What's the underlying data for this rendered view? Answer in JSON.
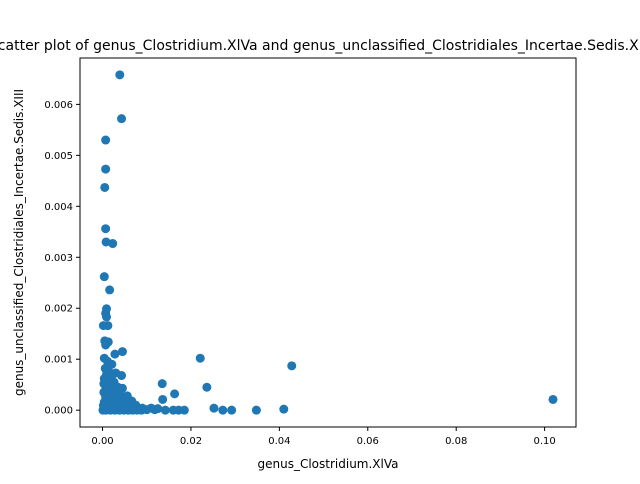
{
  "chart_data": {
    "type": "scatter",
    "title": "Scatter plot of genus_Clostridium.XlVa and genus_unclassified_Clostridiales_Incertae.Sedis.XIII",
    "xlabel": "genus_Clostridium.XlVa",
    "ylabel": "genus_unclassified_Clostridiales_Incertae.Sedis.XIII",
    "xlim": [
      -0.0051,
      0.1071
    ],
    "ylim": [
      -0.00033,
      0.00691
    ],
    "xticks": [
      0.0,
      0.02,
      0.04,
      0.06,
      0.08,
      0.1
    ],
    "xtick_labels": [
      "0.00",
      "0.02",
      "0.04",
      "0.06",
      "0.08",
      "0.10"
    ],
    "yticks": [
      0.0,
      0.001,
      0.002,
      0.003,
      0.004,
      0.005,
      0.006
    ],
    "ytick_labels": [
      "0.000",
      "0.001",
      "0.002",
      "0.003",
      "0.004",
      "0.005",
      "0.006"
    ],
    "grid": false,
    "marker_color": "#1f77b4",
    "points": [
      [
        0.0039,
        0.00658
      ],
      [
        0.0043,
        0.00572
      ],
      [
        0.0007,
        0.0053
      ],
      [
        0.0007,
        0.00473
      ],
      [
        0.0005,
        0.00437
      ],
      [
        0.0007,
        0.00356
      ],
      [
        0.0008,
        0.0033
      ],
      [
        0.0023,
        0.00327
      ],
      [
        0.0004,
        0.00262
      ],
      [
        0.0016,
        0.00236
      ],
      [
        0.0009,
        0.00199
      ],
      [
        0.0007,
        0.0019
      ],
      [
        0.0009,
        0.00183
      ],
      [
        0.0002,
        0.00166
      ],
      [
        0.0012,
        0.00166
      ],
      [
        0.0005,
        0.00136
      ],
      [
        0.0013,
        0.00134
      ],
      [
        0.0007,
        0.00128
      ],
      [
        0.0028,
        0.0011
      ],
      [
        0.0045,
        0.00115
      ],
      [
        0.0221,
        0.00102
      ],
      [
        0.0428,
        0.00087
      ],
      [
        0.0135,
        0.00052
      ],
      [
        0.0236,
        0.00045
      ],
      [
        0.0163,
        0.00032
      ],
      [
        0.1019,
        0.00021
      ],
      [
        0.0136,
        0.00021
      ],
      [
        0.0043,
        0.00068
      ],
      [
        0.0045,
        0.00043
      ],
      [
        0.0004,
        0.00102
      ],
      [
        0.0011,
        0.00096
      ],
      [
        0.0021,
        0.0009
      ],
      [
        0.0006,
        0.00082
      ],
      [
        0.0015,
        0.00075
      ],
      [
        0.003,
        0.00073
      ],
      [
        0.0009,
        0.0007
      ],
      [
        0.002,
        0.00066
      ],
      [
        0.0004,
        0.00062
      ],
      [
        0.0012,
        0.00058
      ],
      [
        0.0026,
        0.00055
      ],
      [
        0.0005,
        0.0005
      ],
      [
        0.0017,
        0.00047
      ],
      [
        0.0035,
        0.00045
      ],
      [
        0.0008,
        0.00042
      ],
      [
        0.0024,
        0.00039
      ],
      [
        0.0003,
        0.00035
      ],
      [
        0.0013,
        0.00032
      ],
      [
        0.004,
        0.0003
      ],
      [
        0.0056,
        0.00028
      ],
      [
        0.0007,
        0.00026
      ],
      [
        0.0019,
        0.00024
      ],
      [
        0.0031,
        0.00022
      ],
      [
        0.005,
        0.0002
      ],
      [
        0.0066,
        0.00018
      ],
      [
        0.0004,
        0.00016
      ],
      [
        0.0014,
        0.00015
      ],
      [
        0.0027,
        0.00013
      ],
      [
        0.0042,
        0.00012
      ],
      [
        0.006,
        0.00011
      ],
      [
        0.0075,
        0.0001
      ],
      [
        0.0002,
        9e-05
      ],
      [
        0.001,
        8e-05
      ],
      [
        0.0022,
        7e-05
      ],
      [
        0.0036,
        6e-05
      ],
      [
        0.0052,
        5e-05
      ],
      [
        0.007,
        5e-05
      ],
      [
        0.009,
        4e-05
      ],
      [
        0.011,
        4e-05
      ],
      [
        0.0125,
        3e-05
      ],
      [
        0.0005,
        3e-05
      ],
      [
        0.0016,
        2e-05
      ],
      [
        0.0032,
        2e-05
      ],
      [
        0.0046,
        2e-05
      ],
      [
        0.0063,
        1e-05
      ],
      [
        0.0082,
        1e-05
      ],
      [
        0.01,
        1e-05
      ],
      [
        0.0118,
        1e-05
      ],
      [
        0.0142,
        0.0
      ],
      [
        0.016,
        0.0
      ],
      [
        0.0172,
        0.0
      ],
      [
        0.0185,
        0.0
      ],
      [
        0.0001,
        0.0
      ],
      [
        0.0008,
        0.0
      ],
      [
        0.0018,
        0.0
      ],
      [
        0.0028,
        0.0
      ],
      [
        0.0038,
        0.0
      ],
      [
        0.0048,
        0.0
      ],
      [
        0.0058,
        0.0
      ],
      [
        0.0068,
        0.0
      ],
      [
        0.0078,
        0.0
      ],
      [
        0.0088,
        0.0
      ],
      [
        0.0252,
        4e-05
      ],
      [
        0.0272,
        0.0
      ],
      [
        0.0292,
        0.0
      ],
      [
        0.0348,
        0.0
      ],
      [
        0.041,
        2e-05
      ],
      [
        0.0003,
        0.00052
      ],
      [
        0.0011,
        0.00044
      ],
      [
        0.0019,
        0.00036
      ],
      [
        0.0025,
        0.00028
      ],
      [
        0.0033,
        0.00019
      ],
      [
        0.0012,
        0.00021
      ],
      [
        0.0006,
        0.00011
      ],
      [
        0.0023,
        9e-05
      ]
    ]
  }
}
